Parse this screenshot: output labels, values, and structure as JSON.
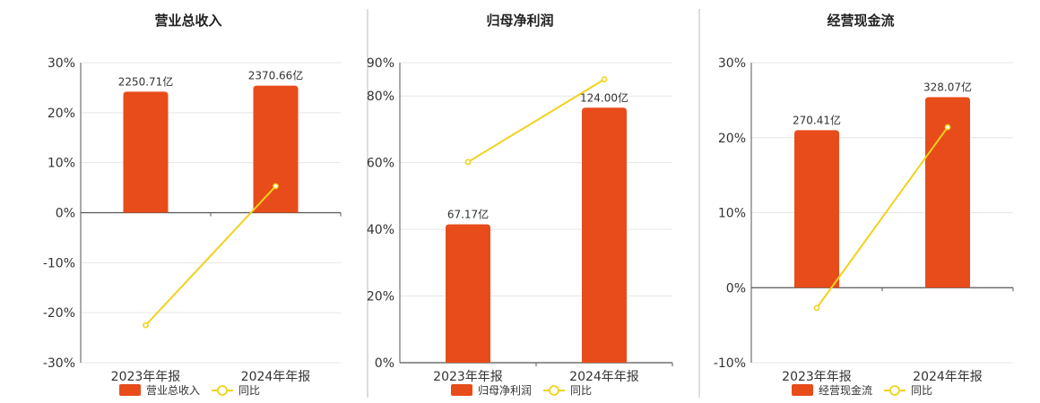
{
  "colors": {
    "bar": "#E84C1A",
    "line": "#F2D21B",
    "grid": "#e6e6e6",
    "axis": "#555555",
    "divider": "#bbbbbb"
  },
  "chart_data": [
    {
      "type": "bar",
      "title": "营业总收入",
      "categories": [
        "2023年年报",
        "2024年年报"
      ],
      "series": [
        {
          "name": "营业总收入",
          "type": "bar",
          "values": [
            24.2,
            25.4
          ],
          "labels": [
            "2250.71亿",
            "2370.66亿"
          ]
        },
        {
          "name": "同比",
          "type": "line",
          "values": [
            -22.5,
            5.3
          ]
        }
      ],
      "yticks": [
        "30%",
        "20%",
        "10%",
        "0%",
        "-10%",
        "-20%",
        "-30%"
      ],
      "ylim": [
        -30,
        30
      ],
      "legend": "bottom",
      "grid": true
    },
    {
      "type": "bar",
      "title": "归母净利润",
      "categories": [
        "2023年年报",
        "2024年年报"
      ],
      "series": [
        {
          "name": "归母净利润",
          "type": "bar",
          "values": [
            41.5,
            76.5
          ],
          "labels": [
            "67.17亿",
            "124.00亿"
          ]
        },
        {
          "name": "同比",
          "type": "line",
          "values": [
            60.2,
            85.0
          ]
        }
      ],
      "yticks": [
        "90%",
        "80%",
        "60%",
        "40%",
        "20%",
        "0%"
      ],
      "yticks_values": [
        90,
        80,
        60,
        40,
        20,
        0
      ],
      "ylim": [
        0,
        90
      ],
      "legend": "bottom",
      "grid": true
    },
    {
      "type": "bar",
      "title": "经营现金流",
      "categories": [
        "2023年年报",
        "2024年年报"
      ],
      "series": [
        {
          "name": "经营现金流",
          "type": "bar",
          "values": [
            21.0,
            25.4
          ],
          "labels": [
            "270.41亿",
            "328.07亿"
          ]
        },
        {
          "name": "同比",
          "type": "line",
          "values": [
            -2.7,
            21.4
          ]
        }
      ],
      "yticks": [
        "30%",
        "20%",
        "10%",
        "0%",
        "-10%"
      ],
      "ylim": [
        -10,
        30
      ],
      "legend": "bottom",
      "grid": true
    }
  ]
}
